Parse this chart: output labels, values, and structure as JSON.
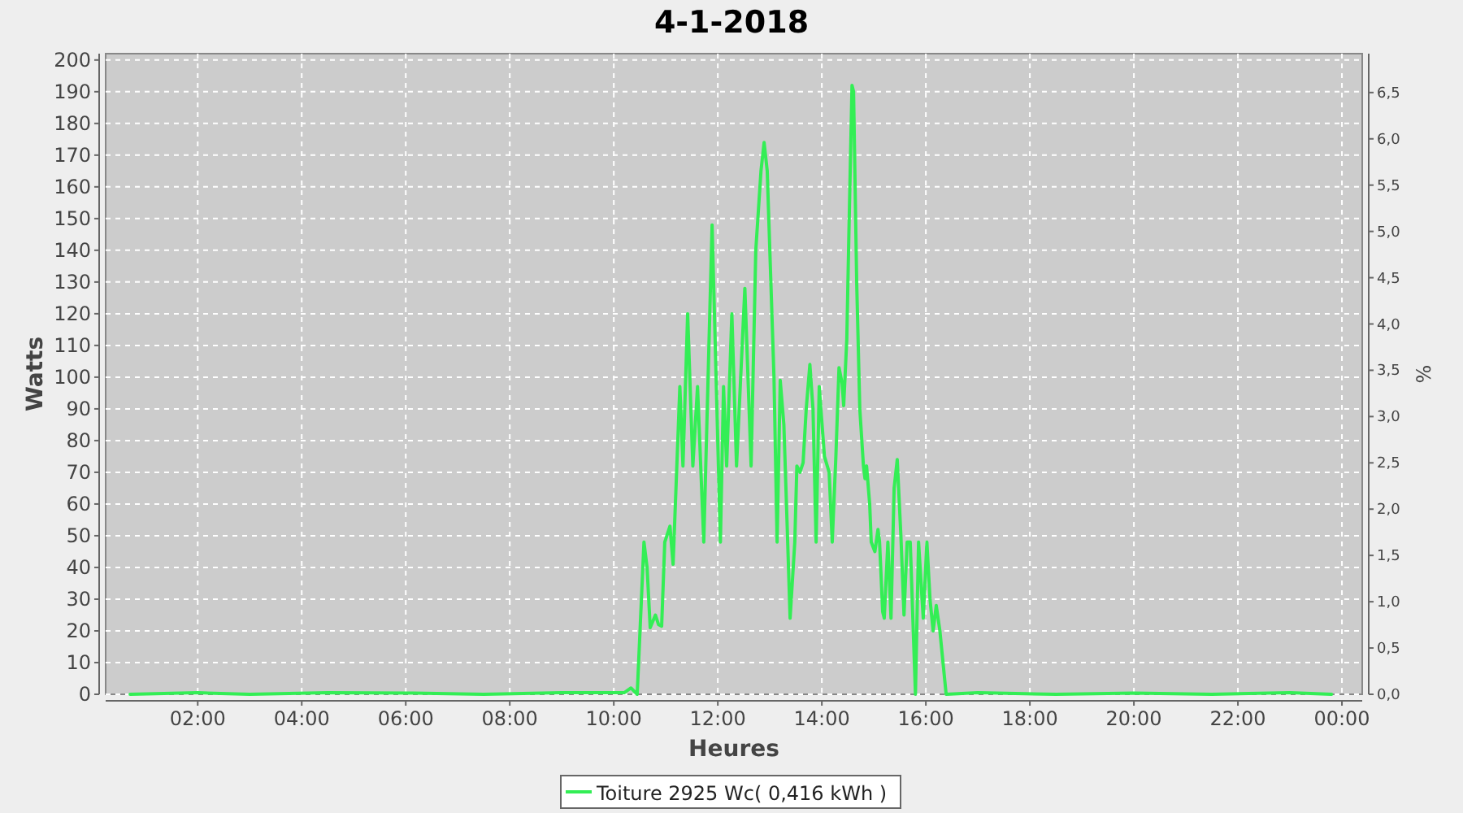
{
  "chart_data": {
    "type": "line",
    "title": "4-1-2018",
    "xlabel": "Heures",
    "ylabel": "Watts",
    "y2label": "%",
    "x": [
      0.7,
      2,
      3,
      4.5,
      6,
      7.5,
      9,
      10.2,
      10.33,
      10.45,
      10.58,
      10.64,
      10.7,
      10.8,
      10.86,
      10.92,
      10.98,
      11.08,
      11.14,
      11.27,
      11.33,
      11.42,
      11.52,
      11.61,
      11.73,
      11.89,
      12.05,
      12.11,
      12.17,
      12.27,
      12.36,
      12.52,
      12.64,
      12.73,
      12.83,
      12.89,
      12.95,
      13.02,
      13.08,
      13.14,
      13.2,
      13.27,
      13.33,
      13.39,
      13.48,
      13.52,
      13.58,
      13.64,
      13.7,
      13.77,
      13.83,
      13.89,
      13.95,
      14.05,
      14.14,
      14.2,
      14.27,
      14.33,
      14.39,
      14.42,
      14.48,
      14.52,
      14.58,
      14.61,
      14.67,
      14.73,
      14.8,
      14.83,
      14.86,
      14.92,
      14.95,
      15.02,
      15.08,
      15.11,
      15.17,
      15.2,
      15.27,
      15.33,
      15.39,
      15.45,
      15.52,
      15.58,
      15.64,
      15.7,
      15.8,
      15.86,
      15.89,
      15.95,
      16.02,
      16.08,
      16.14,
      16.2,
      16.27,
      16.33,
      16.39,
      17,
      18.5,
      20,
      21.5,
      23,
      23.8
    ],
    "series": [
      {
        "name": "Toiture 2925 Wc( 0,416 kWh )",
        "color": "#33ee55",
        "values": [
          0,
          0.5,
          0,
          0.5,
          0.4,
          0,
          0.5,
          0.5,
          2,
          0,
          48,
          40,
          21,
          25,
          22,
          21.5,
          48,
          53,
          41,
          97,
          72,
          120,
          72,
          97,
          48,
          148,
          48,
          97,
          72,
          120,
          72,
          128,
          72,
          140,
          165,
          174,
          165,
          130,
          100,
          48,
          99,
          85,
          55,
          24,
          48,
          72,
          70,
          73,
          90,
          104,
          90,
          48,
          97,
          75,
          70,
          48,
          75,
          103,
          98,
          91,
          112,
          145,
          192,
          190,
          130,
          90,
          72,
          68,
          72,
          60,
          48,
          45,
          52,
          48,
          26,
          24,
          48,
          24,
          65,
          74,
          50,
          25,
          48,
          48,
          0,
          48,
          40,
          24,
          48,
          30,
          20,
          28,
          20,
          10,
          0,
          0.5,
          0,
          0.4,
          0,
          0.5,
          0
        ]
      }
    ],
    "xlim": [
      0.23,
      24.39
    ],
    "xticks": [
      {
        "value": 2,
        "label": "02:00"
      },
      {
        "value": 4,
        "label": "04:00"
      },
      {
        "value": 6,
        "label": "06:00"
      },
      {
        "value": 8,
        "label": "08:00"
      },
      {
        "value": 10,
        "label": "10:00"
      },
      {
        "value": 12,
        "label": "12:00"
      },
      {
        "value": 14,
        "label": "14:00"
      },
      {
        "value": 16,
        "label": "16:00"
      },
      {
        "value": 18,
        "label": "18:00"
      },
      {
        "value": 20,
        "label": "20:00"
      },
      {
        "value": 22,
        "label": "22:00"
      },
      {
        "value": 24,
        "label": "00:00"
      }
    ],
    "ylim": [
      0,
      202
    ],
    "yticks": [
      0,
      10,
      20,
      30,
      40,
      50,
      60,
      70,
      80,
      90,
      100,
      110,
      120,
      130,
      140,
      150,
      160,
      170,
      180,
      190,
      200
    ],
    "y2lim": [
      0,
      6.92
    ],
    "y2ticks": [
      {
        "value": 0,
        "label": "0,0"
      },
      {
        "value": 0.5,
        "label": "0,5"
      },
      {
        "value": 1,
        "label": "1,0"
      },
      {
        "value": 1.5,
        "label": "1,5"
      },
      {
        "value": 2,
        "label": "2,0"
      },
      {
        "value": 2.5,
        "label": "2,5"
      },
      {
        "value": 3,
        "label": "3,0"
      },
      {
        "value": 3.5,
        "label": "3,5"
      },
      {
        "value": 4,
        "label": "4,0"
      },
      {
        "value": 4.5,
        "label": "4,5"
      },
      {
        "value": 5,
        "label": "5,0"
      },
      {
        "value": 5.5,
        "label": "5,5"
      },
      {
        "value": 6,
        "label": "6,0"
      },
      {
        "value": 6.5,
        "label": "6,5"
      }
    ],
    "grid": true,
    "legend": "bottom",
    "marker": "none",
    "line_style": "solid"
  }
}
